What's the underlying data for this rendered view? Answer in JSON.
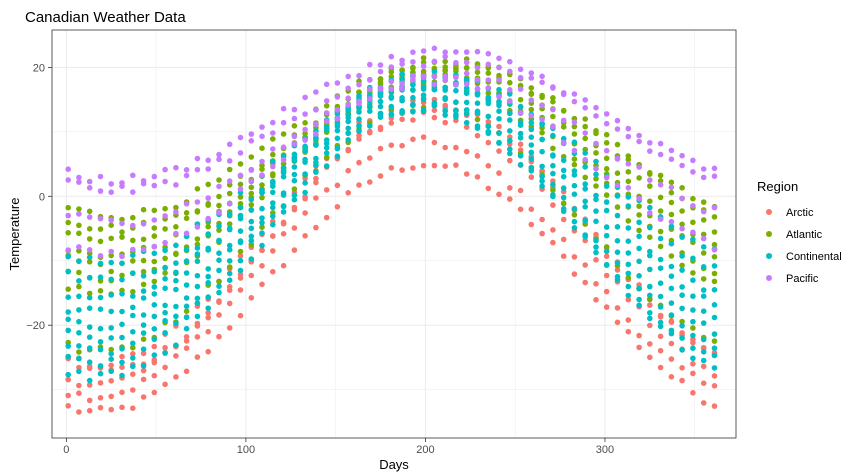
{
  "chart_data": {
    "type": "scatter",
    "title": "Canadian Weather Data",
    "xlabel": "Days",
    "ylabel": "Temperature",
    "xlim": [
      -8,
      373
    ],
    "ylim": [
      -37.5,
      25.8
    ],
    "x_ticks": [
      0,
      100,
      200,
      300
    ],
    "y_ticks": [
      -20,
      0,
      20
    ],
    "x_tick_labels": [
      "0",
      "100",
      "200",
      "300"
    ],
    "y_tick_labels": [
      "−20",
      "0",
      "20"
    ],
    "grid": true,
    "legend": {
      "title": "Region",
      "position": "right"
    },
    "x": {
      "start": 1,
      "end": 365,
      "step": 6
    },
    "series": [
      {
        "name": "Arctic",
        "color": "#F8766D",
        "stations": [
          {
            "min": -33.5,
            "max": 5.0,
            "peak_day": 200
          },
          {
            "min": -31.0,
            "max": 8.5,
            "peak_day": 198
          },
          {
            "min": -29.0,
            "max": 12.5,
            "peak_day": 200
          },
          {
            "min": -27.0,
            "max": 14.0,
            "peak_day": 205
          },
          {
            "min": -26.0,
            "max": 15.0,
            "peak_day": 200
          }
        ]
      },
      {
        "name": "Atlantic",
        "color": "#7CAE00",
        "stations": [
          {
            "min": -3.0,
            "max": 21.0,
            "peak_day": 210
          },
          {
            "min": -5.0,
            "max": 20.5,
            "peak_day": 212
          },
          {
            "min": -7.0,
            "max": 20.0,
            "peak_day": 210
          },
          {
            "min": -9.0,
            "max": 19.5,
            "peak_day": 208
          },
          {
            "min": -11.0,
            "max": 18.0,
            "peak_day": 208
          },
          {
            "min": -13.0,
            "max": 18.5,
            "peak_day": 205
          },
          {
            "min": -15.0,
            "max": 17.5,
            "peak_day": 205
          },
          {
            "min": -24.0,
            "max": 14.0,
            "peak_day": 200
          }
        ]
      },
      {
        "name": "Continental",
        "color": "#00BFC4",
        "stations": [
          {
            "min": -10.0,
            "max": 19.0,
            "peak_day": 205
          },
          {
            "min": -13.0,
            "max": 18.0,
            "peak_day": 205
          },
          {
            "min": -16.0,
            "max": 17.5,
            "peak_day": 202
          },
          {
            "min": -18.0,
            "max": 18.5,
            "peak_day": 200
          },
          {
            "min": -20.0,
            "max": 17.0,
            "peak_day": 200
          },
          {
            "min": -22.0,
            "max": 16.0,
            "peak_day": 200
          },
          {
            "min": -24.0,
            "max": 15.0,
            "peak_day": 198
          },
          {
            "min": -26.0,
            "max": 14.0,
            "peak_day": 198
          },
          {
            "min": -28.0,
            "max": 13.5,
            "peak_day": 200
          }
        ]
      },
      {
        "name": "Pacific",
        "color": "#C77CFF",
        "stations": [
          {
            "min": 2.5,
            "max": 22.5,
            "peak_day": 210
          },
          {
            "min": 1.0,
            "max": 21.0,
            "peak_day": 212
          },
          {
            "min": -4.0,
            "max": 19.0,
            "peak_day": 210
          },
          {
            "min": -9.0,
            "max": 18.0,
            "peak_day": 205
          }
        ]
      }
    ]
  }
}
